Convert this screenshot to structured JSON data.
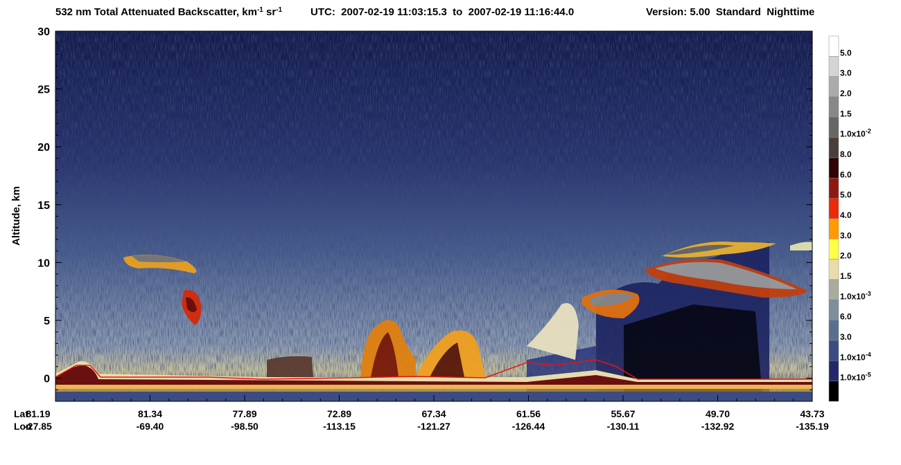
{
  "chart_data": {
    "type": "curtain",
    "title_parts": [
      "532 nm Total Attenuated Backscatter, km",
      "-1",
      " sr",
      "-1"
    ],
    "utc": "UTC:  2007-02-19 11:03:15.3  to  2007-02-19 11:16:44.0",
    "version": "Version: 5.00  Standard  Nighttime",
    "ylabel": "Altitude, km",
    "ylim": [
      -2,
      30
    ],
    "yticks": [
      0,
      5,
      10,
      15,
      20,
      25,
      30
    ],
    "x_rows": [
      {
        "name": "Lat",
        "labels": [
          "81.19",
          "81.34",
          "77.89",
          "72.89",
          "67.34",
          "61.56",
          "55.67",
          "49.70",
          "43.73"
        ]
      },
      {
        "name": "Lon",
        "labels": [
          "-27.85",
          "-69.40",
          "-98.50",
          "-113.15",
          "-121.27",
          "-126.44",
          "-130.11",
          "-132.92",
          "-135.19"
        ]
      }
    ],
    "colorbar": {
      "colors": [
        "#ffffff",
        "#d4d4d4",
        "#ababab",
        "#888888",
        "#666666",
        "#4a3e3a",
        "#2e0404",
        "#8c1a10",
        "#ea2a0a",
        "#ff9a00",
        "#ffff44",
        "#eadcaa",
        "#a9ab9d",
        "#7d8e9c",
        "#586f8c",
        "#3a4c82",
        "#22286a",
        "#000000"
      ],
      "labels": [
        {
          "text": "5.0"
        },
        {
          "text": "3.0"
        },
        {
          "text": "2.0"
        },
        {
          "text": "1.5"
        },
        {
          "text": "1.0x10",
          "sup": "-2"
        },
        {
          "text": "8.0"
        },
        {
          "text": "6.0"
        },
        {
          "text": "5.0"
        },
        {
          "text": "4.0"
        },
        {
          "text": "3.0"
        },
        {
          "text": "2.0"
        },
        {
          "text": "1.5"
        },
        {
          "text": "1.0x10",
          "sup": "-3"
        },
        {
          "text": "6.0"
        },
        {
          "text": "3.0"
        },
        {
          "text": "1.0x10",
          "sup": "-4"
        },
        {
          "text": "1.0x10",
          "sup": "-5"
        }
      ]
    }
  }
}
